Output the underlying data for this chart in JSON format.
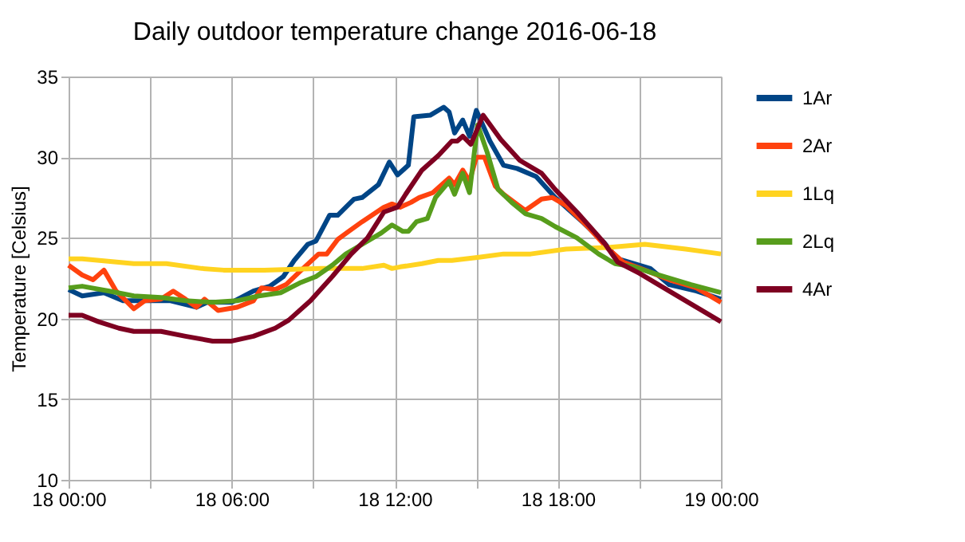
{
  "chart_data": {
    "type": "line",
    "title": "Daily outdoor temperature change 2016-06-18",
    "ylabel": "Temperature [Celsius]",
    "xlim": [
      "2016-06-18T00:00",
      "2016-06-19T00:00"
    ],
    "xticks": [
      {
        "value": "2016-06-18T00:00",
        "label": "18 00:00"
      },
      {
        "value": "2016-06-18T03:00",
        "label": null
      },
      {
        "value": "2016-06-18T06:00",
        "label": "18 06:00"
      },
      {
        "value": "2016-06-18T09:00",
        "label": null
      },
      {
        "value": "2016-06-18T12:00",
        "label": "18 12:00"
      },
      {
        "value": "2016-06-18T15:00",
        "label": null
      },
      {
        "value": "2016-06-18T18:00",
        "label": "18 18:00"
      },
      {
        "value": "2016-06-18T21:00",
        "label": null
      },
      {
        "value": "2016-06-19T00:00",
        "label": "19 00:00"
      }
    ],
    "ylim": [
      10,
      35
    ],
    "yticks": [
      10,
      15,
      20,
      25,
      30,
      35
    ],
    "grid": true,
    "legend": "right",
    "marker": "none",
    "line_style": "solid",
    "series": [
      {
        "name": "1Ar",
        "color": "#004586",
        "x": [
          "2016-06-18T00:00",
          "2016-06-18T00:30",
          "2016-06-18T01:18",
          "2016-06-18T02:00",
          "2016-06-18T03:45",
          "2016-06-18T04:42",
          "2016-06-18T05:06",
          "2016-06-18T06:00",
          "2016-06-18T06:48",
          "2016-06-18T07:24",
          "2016-06-18T07:54",
          "2016-06-18T08:18",
          "2016-06-18T08:48",
          "2016-06-18T09:06",
          "2016-06-18T09:36",
          "2016-06-18T09:54",
          "2016-06-18T10:30",
          "2016-06-18T10:48",
          "2016-06-18T11:24",
          "2016-06-18T11:48",
          "2016-06-18T12:06",
          "2016-06-18T12:30",
          "2016-06-18T12:42",
          "2016-06-18T13:18",
          "2016-06-18T13:48",
          "2016-06-18T14:00",
          "2016-06-18T14:12",
          "2016-06-18T14:30",
          "2016-06-18T14:45",
          "2016-06-18T15:00",
          "2016-06-18T15:30",
          "2016-06-18T16:00",
          "2016-06-18T16:30",
          "2016-06-18T17:12",
          "2016-06-18T17:54",
          "2016-06-18T18:54",
          "2016-06-18T19:42",
          "2016-06-18T20:12",
          "2016-06-18T21:24",
          "2016-06-18T22:06",
          "2016-06-18T23:06",
          "2016-06-19T00:00"
        ],
        "values": [
          21.8,
          21.4,
          21.6,
          21.1,
          21.1,
          20.7,
          21.0,
          21.0,
          21.7,
          22.0,
          22.6,
          23.6,
          24.6,
          24.8,
          26.4,
          26.4,
          27.4,
          27.5,
          28.3,
          29.7,
          28.9,
          29.5,
          32.5,
          32.6,
          33.1,
          32.8,
          31.5,
          32.3,
          31.3,
          32.9,
          31.0,
          29.5,
          29.3,
          28.8,
          27.5,
          26.0,
          24.7,
          23.7,
          23.1,
          22.1,
          21.7,
          21.2
        ]
      },
      {
        "name": "2Ar",
        "color": "#ff420e",
        "x": [
          "2016-06-18T00:00",
          "2016-06-18T00:30",
          "2016-06-18T00:54",
          "2016-06-18T01:18",
          "2016-06-18T01:45",
          "2016-06-18T02:24",
          "2016-06-18T02:48",
          "2016-06-18T03:24",
          "2016-06-18T03:51",
          "2016-06-18T04:18",
          "2016-06-18T04:42",
          "2016-06-18T05:00",
          "2016-06-18T05:30",
          "2016-06-18T06:12",
          "2016-06-18T06:48",
          "2016-06-18T07:06",
          "2016-06-18T07:36",
          "2016-06-18T08:00",
          "2016-06-18T08:30",
          "2016-06-18T09:12",
          "2016-06-18T09:30",
          "2016-06-18T09:54",
          "2016-06-18T10:18",
          "2016-06-18T10:48",
          "2016-06-18T11:36",
          "2016-06-18T11:54",
          "2016-06-18T12:12",
          "2016-06-18T12:36",
          "2016-06-18T12:54",
          "2016-06-18T13:24",
          "2016-06-18T14:00",
          "2016-06-18T14:12",
          "2016-06-18T14:30",
          "2016-06-18T14:45",
          "2016-06-18T15:00",
          "2016-06-18T15:18",
          "2016-06-18T15:42",
          "2016-06-18T16:00",
          "2016-06-18T16:48",
          "2016-06-18T17:24",
          "2016-06-18T17:48",
          "2016-06-18T18:18",
          "2016-06-18T19:06",
          "2016-06-18T19:48",
          "2016-06-18T20:24",
          "2016-06-18T21:12",
          "2016-06-18T22:06",
          "2016-06-18T23:06",
          "2016-06-19T00:00"
        ],
        "values": [
          23.3,
          22.7,
          22.4,
          23.0,
          21.7,
          20.6,
          21.1,
          21.2,
          21.7,
          21.2,
          20.7,
          21.2,
          20.5,
          20.7,
          21.1,
          21.9,
          21.8,
          22.1,
          22.9,
          24.0,
          24.0,
          24.9,
          25.4,
          26.0,
          26.9,
          27.1,
          26.9,
          27.2,
          27.5,
          27.8,
          28.7,
          28.3,
          29.2,
          28.5,
          30.0,
          30.0,
          28.2,
          27.7,
          26.7,
          27.4,
          27.5,
          27.0,
          25.7,
          24.4,
          23.5,
          23.0,
          22.4,
          21.9,
          21.0
        ]
      },
      {
        "name": "1Lq",
        "color": "#ffd320",
        "x": [
          "2016-06-18T00:00",
          "2016-06-18T00:30",
          "2016-06-18T02:24",
          "2016-06-18T03:36",
          "2016-06-18T04:54",
          "2016-06-18T05:42",
          "2016-06-18T07:12",
          "2016-06-18T09:18",
          "2016-06-18T10:48",
          "2016-06-18T11:36",
          "2016-06-18T11:54",
          "2016-06-18T12:12",
          "2016-06-18T13:00",
          "2016-06-18T13:36",
          "2016-06-18T14:06",
          "2016-06-18T15:06",
          "2016-06-18T16:00",
          "2016-06-18T17:00",
          "2016-06-18T18:18",
          "2016-06-18T19:48",
          "2016-06-18T21:12",
          "2016-06-18T22:42",
          "2016-06-19T00:00"
        ],
        "values": [
          23.7,
          23.7,
          23.4,
          23.4,
          23.1,
          23.0,
          23.0,
          23.1,
          23.1,
          23.3,
          23.1,
          23.2,
          23.4,
          23.6,
          23.6,
          23.8,
          24.0,
          24.0,
          24.3,
          24.4,
          24.6,
          24.3,
          24.0
        ]
      },
      {
        "name": "2Lq",
        "color": "#579d1c",
        "x": [
          "2016-06-18T00:00",
          "2016-06-18T00:30",
          "2016-06-18T01:30",
          "2016-06-18T02:24",
          "2016-06-18T03:24",
          "2016-06-18T04:18",
          "2016-06-18T05:18",
          "2016-06-18T06:12",
          "2016-06-18T07:00",
          "2016-06-18T07:48",
          "2016-06-18T08:30",
          "2016-06-18T09:06",
          "2016-06-18T09:42",
          "2016-06-18T10:12",
          "2016-06-18T10:54",
          "2016-06-18T11:30",
          "2016-06-18T11:54",
          "2016-06-18T12:18",
          "2016-06-18T12:30",
          "2016-06-18T12:48",
          "2016-06-18T13:12",
          "2016-06-18T13:30",
          "2016-06-18T14:00",
          "2016-06-18T14:12",
          "2016-06-18T14:30",
          "2016-06-18T14:45",
          "2016-06-18T15:03",
          "2016-06-18T15:24",
          "2016-06-18T15:48",
          "2016-06-18T16:18",
          "2016-06-18T16:48",
          "2016-06-18T17:24",
          "2016-06-18T17:54",
          "2016-06-18T18:42",
          "2016-06-18T19:30",
          "2016-06-18T20:06",
          "2016-06-18T20:48",
          "2016-06-18T21:42",
          "2016-06-18T22:54",
          "2016-06-19T00:00"
        ],
        "values": [
          21.9,
          22.0,
          21.7,
          21.4,
          21.3,
          21.1,
          21.0,
          21.1,
          21.4,
          21.6,
          22.2,
          22.6,
          23.3,
          24.0,
          24.7,
          25.3,
          25.8,
          25.4,
          25.4,
          26.0,
          26.2,
          27.5,
          28.5,
          27.7,
          29.0,
          27.8,
          32.0,
          30.3,
          28.0,
          27.2,
          26.5,
          26.2,
          25.7,
          25.0,
          24.0,
          23.4,
          23.2,
          22.7,
          22.1,
          21.6
        ]
      },
      {
        "name": "4Ar",
        "color": "#7e0021",
        "x": [
          "2016-06-18T00:00",
          "2016-06-18T00:30",
          "2016-06-18T01:06",
          "2016-06-18T01:51",
          "2016-06-18T02:24",
          "2016-06-18T03:24",
          "2016-06-18T04:18",
          "2016-06-18T05:18",
          "2016-06-18T06:00",
          "2016-06-18T06:48",
          "2016-06-18T07:36",
          "2016-06-18T08:06",
          "2016-06-18T08:54",
          "2016-06-18T09:42",
          "2016-06-18T10:24",
          "2016-06-18T11:00",
          "2016-06-18T11:36",
          "2016-06-18T12:06",
          "2016-06-18T12:24",
          "2016-06-18T13:00",
          "2016-06-18T13:36",
          "2016-06-18T14:06",
          "2016-06-18T14:18",
          "2016-06-18T14:30",
          "2016-06-18T14:48",
          "2016-06-18T15:15",
          "2016-06-18T15:54",
          "2016-06-18T16:36",
          "2016-06-18T17:24",
          "2016-06-18T17:54",
          "2016-06-18T18:42",
          "2016-06-18T19:42",
          "2016-06-18T20:12",
          "2016-06-18T21:00",
          "2016-06-18T21:42",
          "2016-06-18T22:42",
          "2016-06-19T00:00"
        ],
        "values": [
          20.2,
          20.2,
          19.8,
          19.4,
          19.2,
          19.2,
          18.9,
          18.6,
          18.6,
          18.9,
          19.4,
          19.9,
          21.1,
          22.6,
          24.0,
          25.0,
          26.6,
          26.9,
          27.7,
          29.2,
          30.1,
          31.0,
          31.0,
          31.3,
          30.8,
          32.6,
          31.1,
          29.8,
          29.0,
          28.0,
          26.6,
          24.7,
          23.5,
          22.8,
          22.1,
          21.1,
          19.8
        ]
      }
    ]
  }
}
